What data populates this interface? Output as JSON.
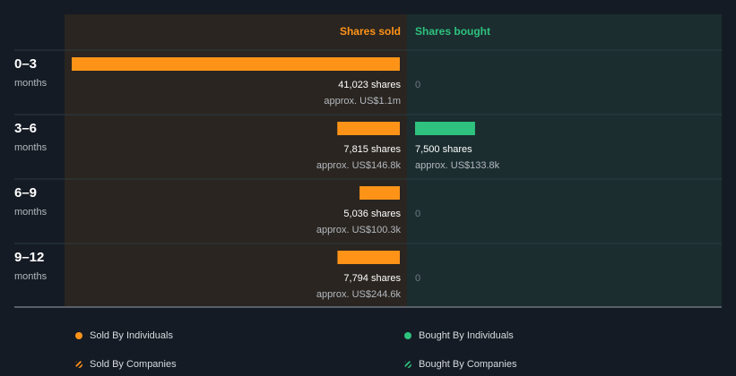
{
  "colors": {
    "background": "#151b24",
    "sold_panel": "#2a2520",
    "bought_panel": "#1b2d2f",
    "sold": "#ff9318",
    "bought": "#2ec27e",
    "divider": "#2c3a40",
    "muted": "#b3b8bf",
    "zero": "#6f7a82"
  },
  "chart_data": {
    "type": "bar",
    "orientation": "horizontal",
    "header": {
      "sold": "Shares sold",
      "bought": "Shares bought"
    },
    "periods": [
      {
        "label": "0–3",
        "unit": "months",
        "sold_shares": 41023,
        "sold_text": "41,023 shares",
        "sold_value": "approx. US$1.1m",
        "bought_shares": 0,
        "bought_text": "0",
        "bought_value": ""
      },
      {
        "label": "3–6",
        "unit": "months",
        "sold_shares": 7815,
        "sold_text": "7,815 shares",
        "sold_value": "approx. US$146.8k",
        "bought_shares": 7500,
        "bought_text": "7,500 shares",
        "bought_value": "approx. US$133.8k"
      },
      {
        "label": "6–9",
        "unit": "months",
        "sold_shares": 5036,
        "sold_text": "5,036 shares",
        "sold_value": "approx. US$100.3k",
        "bought_shares": 0,
        "bought_text": "0",
        "bought_value": ""
      },
      {
        "label": "9–12",
        "unit": "months",
        "sold_shares": 7794,
        "sold_text": "7,794 shares",
        "sold_value": "approx. US$244.6k",
        "bought_shares": 0,
        "bought_text": "0",
        "bought_value": ""
      }
    ],
    "legend": [
      {
        "label": "Sold By Individuals",
        "style": "solid",
        "color": "#ff9318"
      },
      {
        "label": "Bought By Individuals",
        "style": "solid",
        "color": "#2ec27e"
      },
      {
        "label": "Sold By Companies",
        "style": "hatched",
        "color": "#ff9318"
      },
      {
        "label": "Bought By Companies",
        "style": "hatched",
        "color": "#2ec27e"
      }
    ]
  }
}
